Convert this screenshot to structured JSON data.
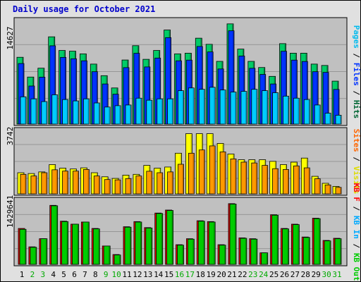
{
  "title": "Daily usage for October 2021",
  "chart_data": [
    {
      "type": "bar",
      "panel": "top",
      "ylabel_max": "14627",
      "legend": [
        "Pages",
        "Files",
        "Hits"
      ],
      "legend_colors": [
        "#00ccff",
        "#0033ff",
        "#006633"
      ],
      "ylim": [
        0,
        15200
      ],
      "categories": [
        "1",
        "2",
        "3",
        "4",
        "5",
        "6",
        "7",
        "8",
        "9",
        "10",
        "11",
        "12",
        "13",
        "14",
        "15",
        "16",
        "17",
        "18",
        "19",
        "20",
        "21",
        "22",
        "23",
        "24",
        "25",
        "26",
        "27",
        "28",
        "29",
        "30",
        "31"
      ],
      "series": [
        {
          "name": "Hits",
          "values": [
            9800,
            6900,
            8200,
            12800,
            10800,
            10700,
            10300,
            8800,
            7100,
            5300,
            9400,
            11500,
            9500,
            10800,
            13800,
            10300,
            10400,
            12600,
            11700,
            9200,
            14700,
            11000,
            9200,
            8300,
            7000,
            11800,
            10400,
            10400,
            8800,
            8600,
            6300
          ]
        },
        {
          "name": "Files",
          "values": [
            9400,
            6100,
            7400,
            12000,
            10300,
            10100,
            9800,
            8200,
            6400,
            4900,
            8800,
            10900,
            8900,
            10200,
            13200,
            9800,
            9900,
            11900,
            11100,
            8600,
            14200,
            10500,
            8700,
            7800,
            6400,
            11200,
            9900,
            9700,
            8200,
            8100,
            5600
          ]
        },
        {
          "name": "Pages",
          "values": [
            4000,
            3700,
            3300,
            4300,
            3600,
            3400,
            3700,
            3100,
            2500,
            2700,
            2800,
            3800,
            3500,
            3700,
            3700,
            4900,
            5300,
            5100,
            5400,
            5000,
            4700,
            4800,
            5100,
            4900,
            4600,
            4100,
            3800,
            3600,
            2800,
            1600,
            1300
          ]
        }
      ]
    },
    {
      "type": "bar",
      "panel": "middle",
      "ylabel_max": "3742",
      "legend": [
        "Sites",
        "Visits"
      ],
      "legend_colors": [
        "#ff6600",
        "#ffff00"
      ],
      "ylim": [
        0,
        3900
      ],
      "categories": [
        "1",
        "2",
        "3",
        "4",
        "5",
        "6",
        "7",
        "8",
        "9",
        "10",
        "11",
        "12",
        "13",
        "14",
        "15",
        "16",
        "17",
        "18",
        "19",
        "20",
        "21",
        "22",
        "23",
        "24",
        "25",
        "26",
        "27",
        "28",
        "29",
        "30",
        "31"
      ],
      "series": [
        {
          "name": "Visits",
          "values": [
            1300,
            1250,
            1350,
            1800,
            1580,
            1530,
            1600,
            1300,
            1050,
            950,
            1150,
            1200,
            1750,
            1580,
            1650,
            2500,
            3700,
            3700,
            3700,
            3100,
            2450,
            2100,
            2100,
            2100,
            2000,
            1800,
            1950,
            2200,
            1080,
            650,
            460
          ]
        },
        {
          "name": "Sites",
          "values": [
            1200,
            1100,
            1300,
            1480,
            1400,
            1400,
            1500,
            1100,
            880,
            860,
            940,
            1100,
            1390,
            1300,
            1350,
            1820,
            2500,
            2700,
            2950,
            2580,
            2150,
            1950,
            1900,
            1750,
            1550,
            1500,
            1720,
            1600,
            930,
            550,
            400
          ]
        }
      ]
    },
    {
      "type": "bar",
      "panel": "bottom",
      "ylabel_max": "1429641",
      "legend": [
        "KB F",
        "KB In",
        "KB Out"
      ],
      "legend_colors": [
        "#ff0000",
        "#00aaff",
        "#00cc00"
      ],
      "ylim": [
        0,
        1500000
      ],
      "categories": [
        "1",
        "2",
        "3",
        "4",
        "5",
        "6",
        "7",
        "8",
        "9",
        "10",
        "11",
        "12",
        "13",
        "14",
        "15",
        "16",
        "17",
        "18",
        "19",
        "20",
        "21",
        "22",
        "23",
        "24",
        "25",
        "26",
        "27",
        "28",
        "29",
        "30",
        "31"
      ],
      "series": [
        {
          "name": "KB F",
          "values": [
            840000,
            410000,
            600000,
            1380000,
            1010000,
            940000,
            990000,
            840000,
            430000,
            230000,
            880000,
            1000000,
            860000,
            1200000,
            1270000,
            460000,
            600000,
            1020000,
            1000000,
            460000,
            1420000,
            620000,
            600000,
            270000,
            1160000,
            840000,
            940000,
            640000,
            1080000,
            560000,
            610000
          ]
        },
        {
          "name": "KB Out",
          "values": [
            820000,
            400000,
            600000,
            1370000,
            1000000,
            940000,
            990000,
            830000,
            430000,
            220000,
            870000,
            990000,
            850000,
            1190000,
            1260000,
            450000,
            590000,
            1010000,
            990000,
            450000,
            1410000,
            610000,
            590000,
            270000,
            1150000,
            830000,
            930000,
            630000,
            1070000,
            550000,
            600000
          ]
        }
      ]
    }
  ],
  "xaxis": {
    "labels": [
      "1",
      "2",
      "3",
      "4",
      "5",
      "6",
      "7",
      "8",
      "9",
      "10",
      "11",
      "12",
      "13",
      "14",
      "15",
      "16",
      "17",
      "18",
      "19",
      "20",
      "21",
      "22",
      "23",
      "24",
      "25",
      "26",
      "27",
      "28",
      "29",
      "30",
      "31"
    ],
    "weekend_days": [
      2,
      3,
      9,
      10,
      16,
      17,
      23,
      24,
      30,
      31
    ],
    "weekday_color": "#000000",
    "weekend_color": "#00aa00"
  },
  "colors": {
    "hits_fill": "#00cc66",
    "hits_dark": "#006633",
    "files_fill": "#0033ff",
    "pages_fill": "#00ccff",
    "visits_fill": "#ffff00",
    "sites_fill": "#ff9900",
    "kbf_fill": "#ff0000",
    "kbout_fill": "#00cc00",
    "panel_bg": "#c0c0c0"
  }
}
